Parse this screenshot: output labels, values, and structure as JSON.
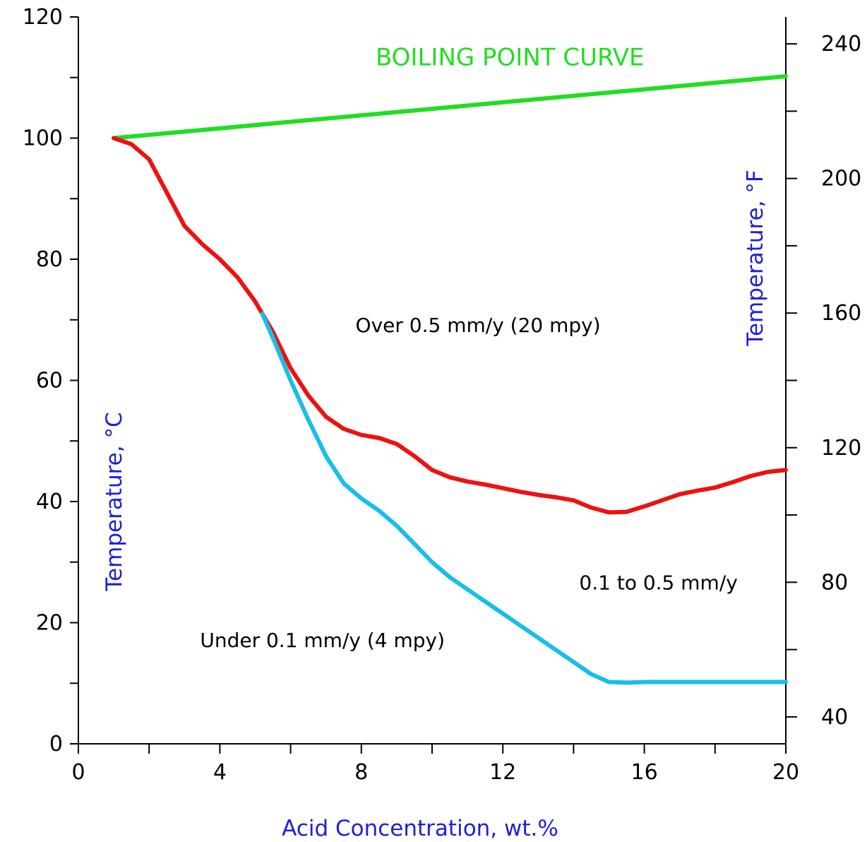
{
  "chart_data": {
    "type": "line",
    "xlabel": "Acid Concentration, wt.%",
    "ylabel": "Temperature, °C",
    "y2label": "Temperature, °F",
    "xlim": [
      0,
      20
    ],
    "ylim": [
      0,
      120
    ],
    "y2lim": [
      32,
      248
    ],
    "x_ticks": [
      "0",
      "4",
      "8",
      "12",
      "16",
      "20"
    ],
    "y_ticks": [
      "0",
      "20",
      "40",
      "60",
      "80",
      "100",
      "120"
    ],
    "y2_ticks": [
      "40",
      "80",
      "120",
      "160",
      "200",
      "240"
    ],
    "grid": false,
    "series": [
      {
        "name": "BOILING POINT CURVE",
        "color": "#22dd22",
        "x": [
          1,
          20
        ],
        "y": [
          100,
          110.2
        ]
      },
      {
        "color": "#ee1111",
        "x": [
          1,
          1.5,
          2,
          2.5,
          3,
          3.5,
          4,
          4.5,
          5,
          5.5,
          6,
          6.5,
          7,
          7.5,
          8,
          8.5,
          9,
          9.5,
          10,
          10.5,
          11,
          11.5,
          12,
          12.5,
          13,
          13.5,
          14,
          14.5,
          15,
          15.5,
          16,
          16.5,
          17,
          17.5,
          18,
          18.5,
          19,
          19.5,
          20
        ],
        "y": [
          100,
          99,
          96.5,
          91,
          85.5,
          82.5,
          80,
          77,
          73,
          68,
          62,
          57.5,
          54,
          52,
          51,
          50.5,
          49.5,
          47.5,
          45.2,
          44,
          43.3,
          42.8,
          42.2,
          41.6,
          41.1,
          40.7,
          40.2,
          39,
          38.2,
          38.3,
          39.2,
          40.2,
          41.2,
          41.8,
          42.3,
          43.2,
          44.2,
          44.9,
          45.2
        ]
      },
      {
        "color": "#17bfe8",
        "x": [
          5.2,
          5.5,
          6,
          6.5,
          7,
          7.5,
          8,
          8.5,
          9,
          9.5,
          10,
          10.5,
          11,
          11.5,
          12,
          12.5,
          13,
          13.5,
          14,
          14.5,
          15,
          15.5,
          16,
          17,
          18,
          19,
          20
        ],
        "y": [
          71,
          67,
          60,
          53.5,
          47.5,
          43,
          40.5,
          38.5,
          36,
          33,
          30,
          27.5,
          25.5,
          23.5,
          21.5,
          19.5,
          17.5,
          15.5,
          13.5,
          11.5,
          10.2,
          10.1,
          10.2,
          10.2,
          10.2,
          10.2,
          10.2
        ]
      }
    ],
    "annotations": [
      {
        "text": "BOILING POINT CURVE",
        "x": 12.2,
        "y": 112,
        "color": "#22dd22"
      },
      {
        "text": "Over 0.5 mm/y (20 mpy)",
        "x": 11.3,
        "y": 68,
        "color": "#000000"
      },
      {
        "text": "0.1 to 0.5 mm/y",
        "x": 16.4,
        "y": 25.5,
        "color": "#000000"
      },
      {
        "text": "Under 0.1 mm/y (4 mpy)",
        "x": 6.9,
        "y": 16,
        "color": "#000000"
      }
    ]
  }
}
